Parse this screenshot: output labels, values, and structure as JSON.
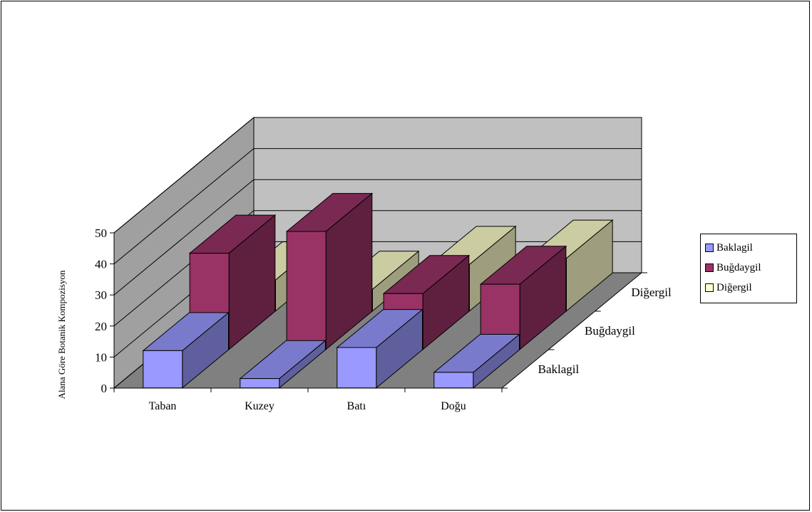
{
  "chart_data": {
    "type": "bar",
    "categories": [
      "Taban",
      "Kuzey",
      "Batı",
      "Doğu"
    ],
    "series": [
      {
        "name": "Baklagil",
        "values": [
          12,
          3,
          13,
          5
        ],
        "color": "#9999ff"
      },
      {
        "name": "Buğdaygil",
        "values": [
          31,
          38,
          18,
          21
        ],
        "color": "#993366"
      },
      {
        "name": "Diğergil",
        "values": [
          10,
          7,
          15,
          17
        ],
        "color": "#ffffcc"
      }
    ],
    "title": "",
    "xlabel": "",
    "ylabel": "Alana Göre Botanik Kompozisyon",
    "ylim": [
      0,
      50
    ],
    "yticks": [
      "0",
      "10",
      "20",
      "30",
      "40",
      "50"
    ],
    "depth_labels": [
      "Baklagil",
      "Buğdaygil",
      "Diğergil"
    ],
    "grid": true,
    "legend_position": "right",
    "style": "3d-column"
  }
}
